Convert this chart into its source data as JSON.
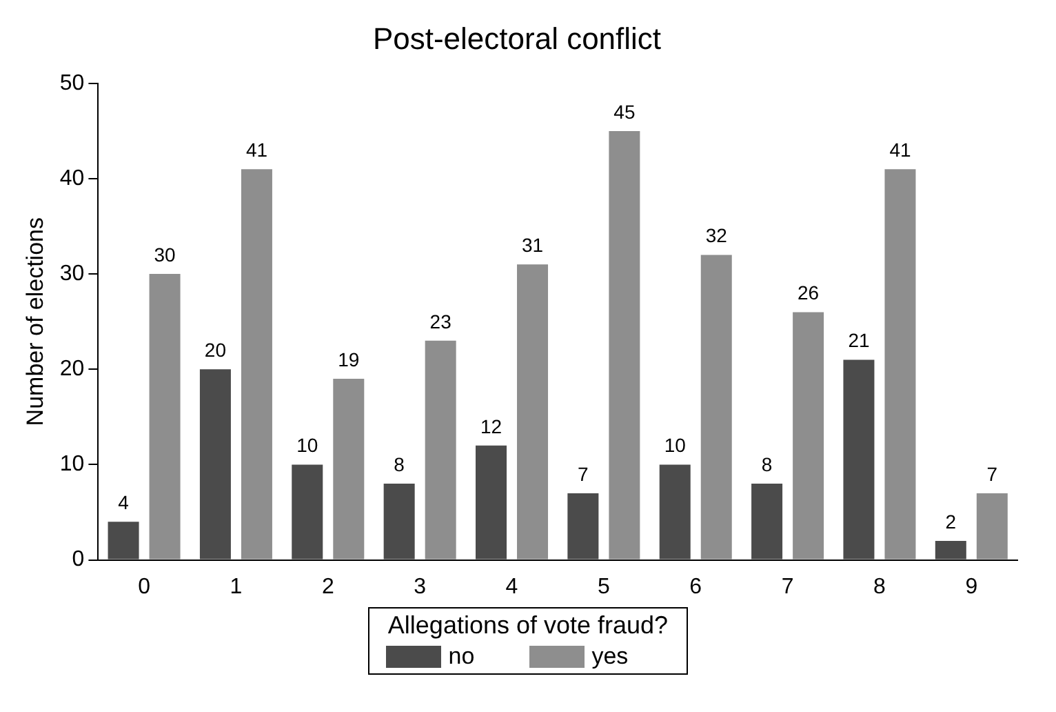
{
  "chart_data": {
    "type": "bar",
    "title": "Post-electoral conflict",
    "ylabel": "Number of elections",
    "legend_title": "Allegations of vote fraud?",
    "categories": [
      "0",
      "1",
      "2",
      "3",
      "4",
      "5",
      "6",
      "7",
      "8",
      "9"
    ],
    "series": [
      {
        "name": "no",
        "color": "#4b4b4b",
        "values": [
          4,
          20,
          10,
          8,
          12,
          7,
          10,
          8,
          21,
          2
        ]
      },
      {
        "name": "yes",
        "color": "#8e8e8e",
        "values": [
          30,
          41,
          19,
          23,
          31,
          45,
          32,
          26,
          41,
          7
        ]
      }
    ],
    "ylim": [
      0,
      50
    ],
    "yticks": [
      0,
      10,
      20,
      30,
      40,
      50
    ],
    "data_labels": true,
    "grid": false,
    "legend": "bottom"
  }
}
